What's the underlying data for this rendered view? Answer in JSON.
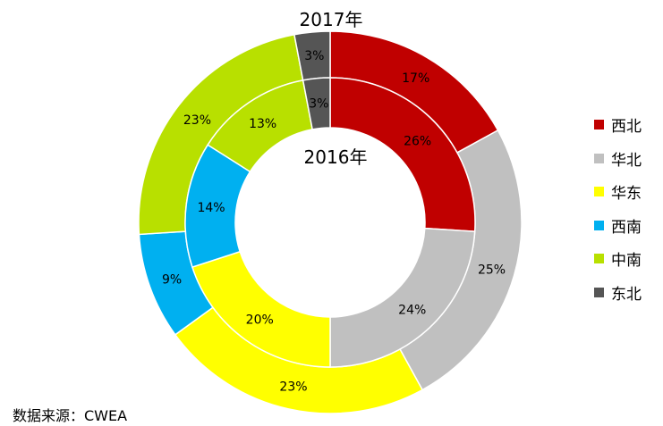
{
  "chart_data": {
    "type": "pie",
    "subtype": "nested-donut",
    "categories": [
      "西北",
      "华北",
      "华东",
      "西南",
      "中南",
      "东北"
    ],
    "colors": [
      "#c00000",
      "#c0c0c0",
      "#ffff00",
      "#00b0f0",
      "#b8e000",
      "#555555"
    ],
    "series": [
      {
        "name": "2017年",
        "ring": "outer",
        "values": [
          17,
          25,
          23,
          9,
          23,
          3
        ],
        "labels": [
          "17%",
          "25%",
          "23%",
          "9%",
          "23%",
          "3%"
        ]
      },
      {
        "name": "2016年",
        "ring": "inner",
        "values": [
          26,
          24,
          20,
          14,
          13,
          3
        ],
        "labels": [
          "26%",
          "24%",
          "20%",
          "14%",
          "13%",
          "3%"
        ]
      }
    ],
    "legend_position": "right"
  },
  "source": "数据来源：CWEA"
}
